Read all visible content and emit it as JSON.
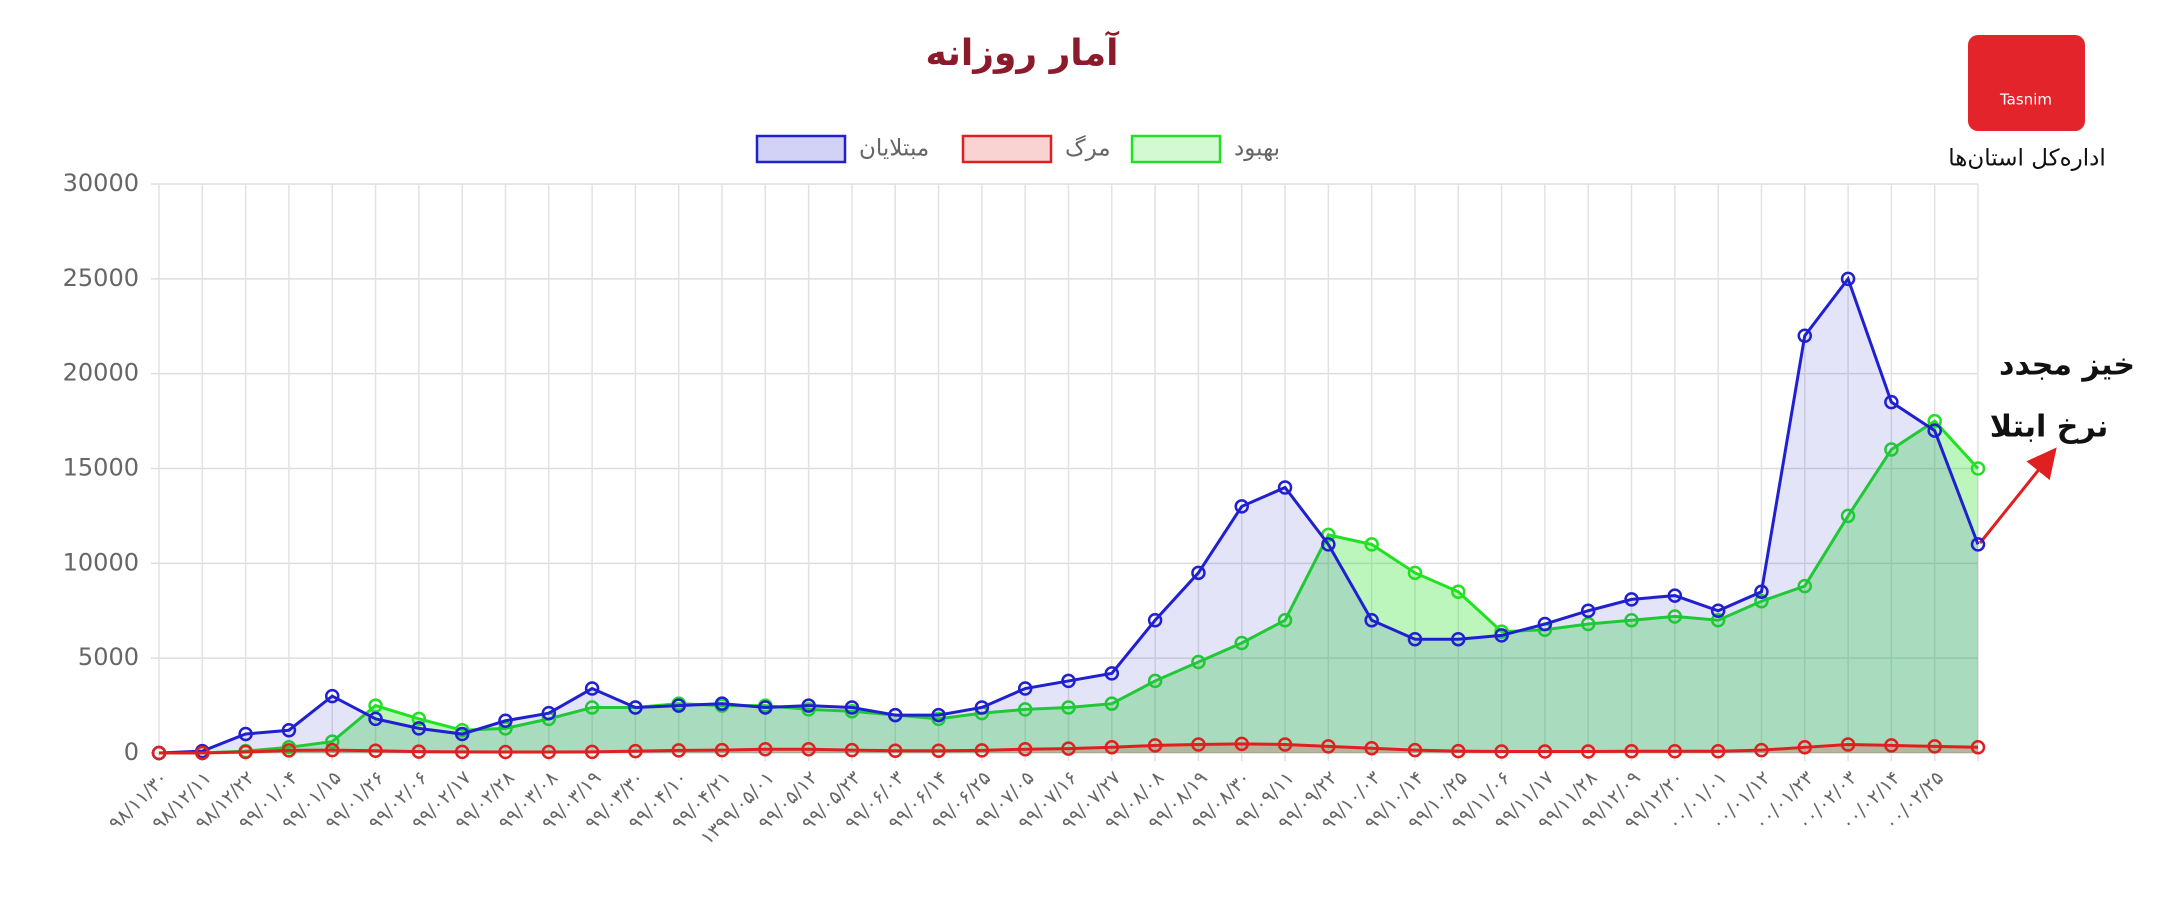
{
  "chart_data": {
    "type": "line",
    "title": "آمار روزانه",
    "categories": [
      "۹۸/۱۱/۳۰",
      "۹۸/۱۲/۱۱",
      "۹۸/۱۲/۲۲",
      "۹۹/۰۱/۰۴",
      "۹۹/۰۱/۱۵",
      "۹۹/۰۱/۲۶",
      "۹۹/۰۲/۰۶",
      "۹۹/۰۲/۱۷",
      "۹۹/۰۲/۲۸",
      "۹۹/۰۳/۰۸",
      "۹۹/۰۳/۱۹",
      "۹۹/۰۳/۳۰",
      "۹۹/۰۴/۱۰",
      "۹۹/۰۴/۲۱",
      "۱۳۹۹/۰۵/۰۱",
      "۹۹/۰۵/۱۲",
      "۹۹/۰۵/۲۳",
      "۹۹/۰۶/۰۳",
      "۹۹/۰۶/۱۴",
      "۹۹/۰۶/۲۵",
      "۹۹/۰۷/۰۵",
      "۹۹/۰۷/۱۶",
      "۹۹/۰۷/۲۷",
      "۹۹/۰۸/۰۸",
      "۹۹/۰۸/۱۹",
      "۹۹/۰۸/۳۰",
      "۹۹/۰۹/۱۱",
      "۹۹/۰۹/۲۲",
      "۹۹/۱۰/۰۳",
      "۹۹/۱۰/۱۴",
      "۹۹/۱۰/۲۵",
      "۹۹/۱۱/۰۶",
      "۹۹/۱۱/۱۷",
      "۹۹/۱۱/۲۸",
      "۹۹/۱۲/۰۹",
      "۹۹/۱۲/۲۰",
      "۰۰/۰۱/۰۱",
      "۰۰/۰۱/۱۲",
      "۰۰/۰۱/۲۳",
      "۰۰/۰۲/۰۳",
      "۰۰/۰۲/۱۴",
      "۰۰/۰۲/۲۵",
      null
    ],
    "series": [
      {
        "name": "مبتلایان",
        "color": "#2020d0",
        "values": [
          0,
          100,
          1000,
          1200,
          3000,
          1800,
          1300,
          1000,
          1700,
          2100,
          3400,
          2400,
          2500,
          2600,
          2400,
          2500,
          2400,
          2000,
          2000,
          2400,
          3400,
          3800,
          4200,
          7000,
          9500,
          13000,
          14000,
          11000,
          7000,
          6000,
          6000,
          6200,
          6800,
          7500,
          8100,
          8300,
          7500,
          8500,
          22000,
          25000,
          18500,
          17000,
          11000
        ]
      },
      {
        "name": "مرگ",
        "color": "#e02020",
        "values": [
          0,
          0,
          50,
          140,
          150,
          120,
          70,
          60,
          50,
          50,
          60,
          100,
          140,
          150,
          200,
          200,
          150,
          120,
          120,
          140,
          200,
          230,
          300,
          400,
          450,
          480,
          450,
          350,
          250,
          150,
          100,
          80,
          80,
          80,
          90,
          90,
          90,
          150,
          300,
          450,
          400,
          350,
          300
        ]
      },
      {
        "name": "بهبود",
        "color": "#22e022",
        "values": [
          0,
          0,
          100,
          300,
          600,
          2500,
          1800,
          1200,
          1300,
          1800,
          2400,
          2400,
          2600,
          2500,
          2500,
          2300,
          2200,
          2000,
          1800,
          2100,
          2300,
          2400,
          2600,
          3800,
          4800,
          5800,
          7000,
          11500,
          11000,
          9500,
          8500,
          6400,
          6500,
          6800,
          7000,
          7200,
          7000,
          8000,
          8800,
          12500,
          16000,
          17500,
          15000
        ]
      }
    ],
    "ylim": [
      0,
      30000
    ],
    "yticks": [
      0,
      5000,
      10000,
      15000,
      20000,
      25000,
      30000
    ],
    "grid": true,
    "legend": "top",
    "annotations": [
      "خیز مجدد",
      "نرخ ابتلا"
    ]
  },
  "logo": {
    "brand": "Tasnim",
    "caption": "اداره‌کل استان‌ها"
  }
}
